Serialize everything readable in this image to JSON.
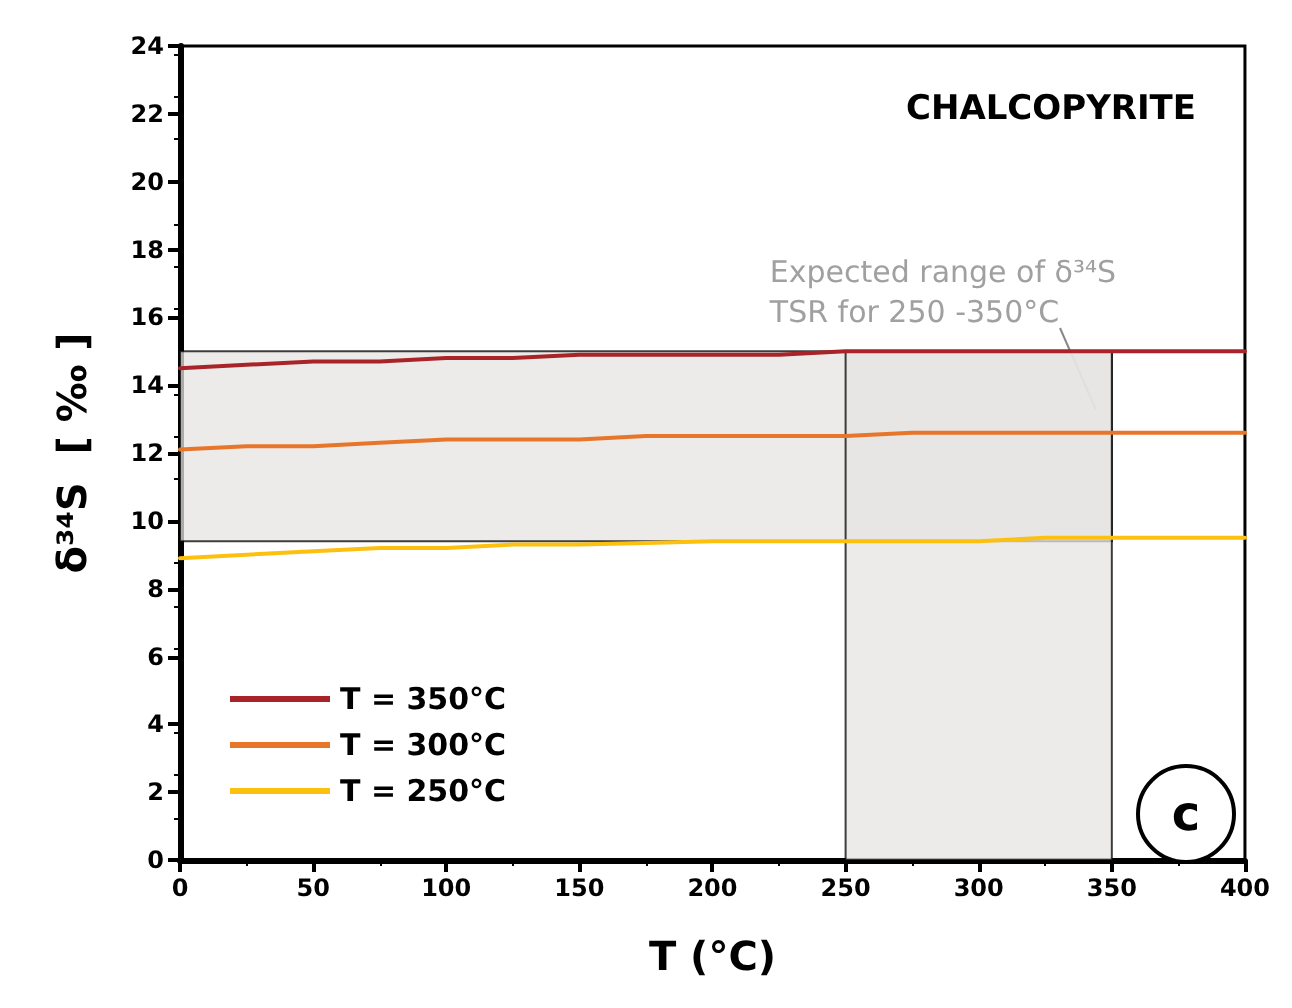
{
  "chart_data": {
    "type": "line",
    "title": "CHALCOPYRITE",
    "xlabel": "T (°C)",
    "ylabel": "δ³⁴S  [ ‰ ]",
    "annotations": [
      "Expected range of δ³⁴S\nTSR for 250 -350°C",
      "c"
    ],
    "x": [
      0,
      25,
      50,
      75,
      100,
      125,
      150,
      175,
      200,
      225,
      250,
      275,
      300,
      325,
      350,
      375,
      400
    ],
    "series": [
      {
        "name": "T = 350°C",
        "color": "#a82428",
        "values": [
          14.5,
          14.6,
          14.7,
          14.7,
          14.8,
          14.8,
          14.9,
          14.9,
          14.9,
          14.9,
          15.0,
          15.0,
          15.0,
          15.0,
          15.0,
          15.0,
          15.0
        ]
      },
      {
        "name": "T = 300°C",
        "color": "#e8762a",
        "values": [
          12.1,
          12.2,
          12.2,
          12.3,
          12.4,
          12.4,
          12.4,
          12.5,
          12.5,
          12.5,
          12.5,
          12.6,
          12.6,
          12.6,
          12.6,
          12.6,
          12.6
        ]
      },
      {
        "name": "T = 250°C",
        "color": "#fcc10e",
        "values": [
          8.9,
          9.0,
          9.1,
          9.2,
          9.2,
          9.3,
          9.3,
          9.35,
          9.4,
          9.4,
          9.4,
          9.4,
          9.4,
          9.5,
          9.5,
          9.5,
          9.5
        ]
      }
    ],
    "bands": [
      {
        "axis": "y",
        "from": 9.4,
        "to": 15,
        "color": "#e6e4e2"
      },
      {
        "axis": "x",
        "from": 250,
        "to": 350,
        "color": "#e6e4e2"
      }
    ],
    "xlim": [
      0,
      400
    ],
    "xticks": [
      0,
      50,
      100,
      150,
      200,
      250,
      300,
      350,
      400
    ],
    "ylim": [
      0,
      24
    ],
    "yticks": [
      0,
      2,
      4,
      6,
      8,
      10,
      12,
      14,
      16,
      18,
      20,
      22,
      24
    ],
    "grid": false,
    "legend": "bottom left",
    "marker": "none",
    "line_style": "solid"
  }
}
